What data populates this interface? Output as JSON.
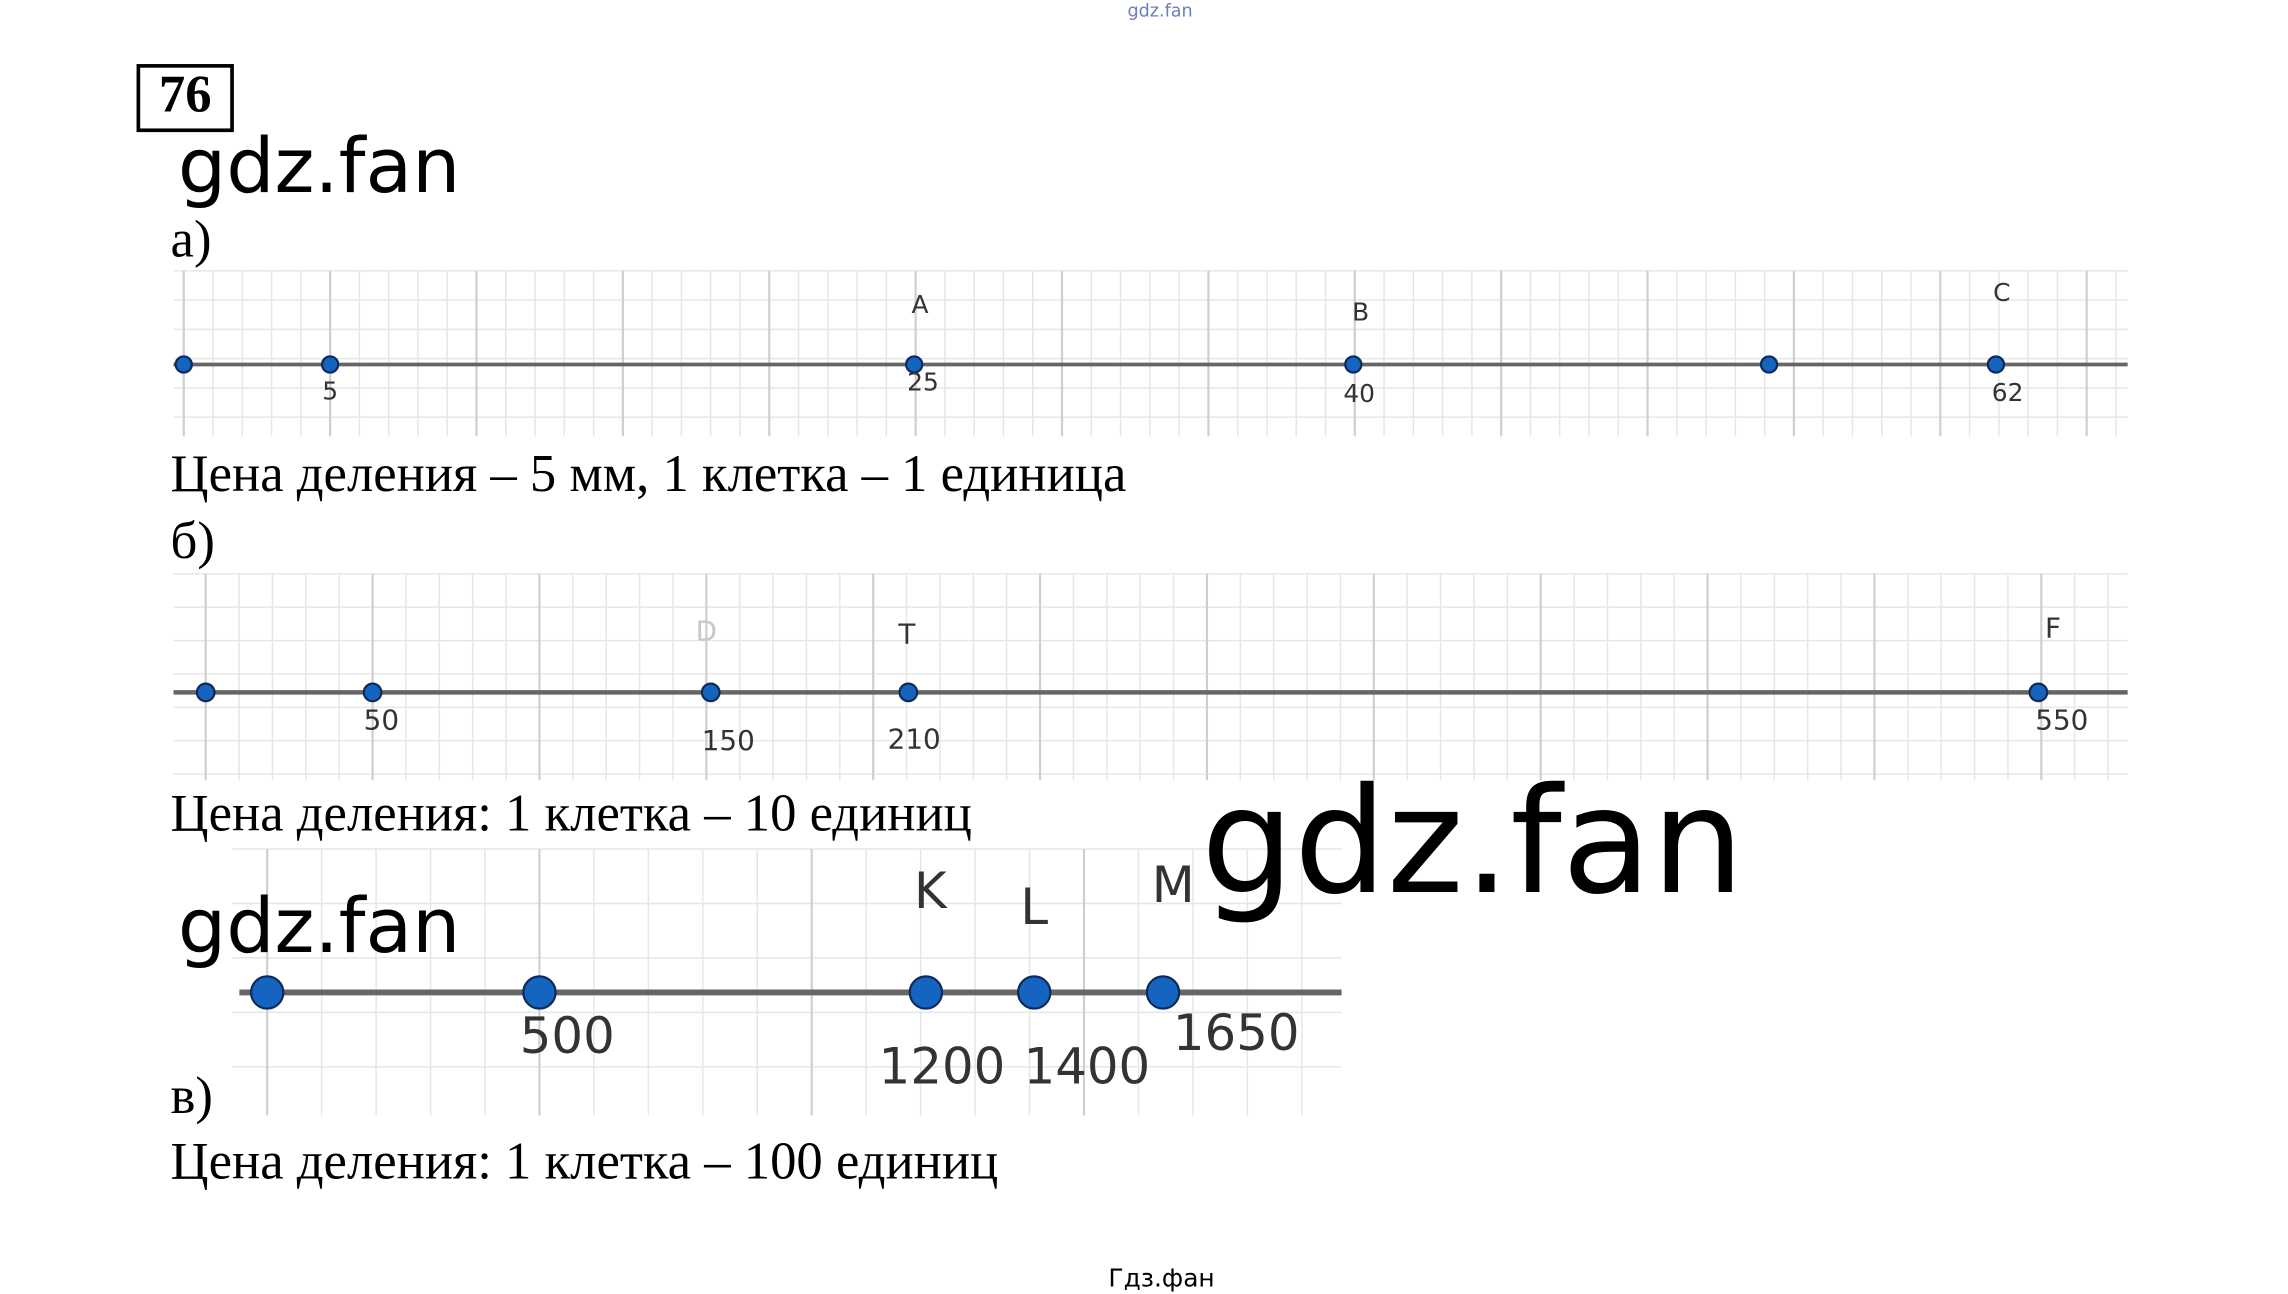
{
  "top_watermark": "gdz.fan",
  "problem_number": "76",
  "watermarks": [
    "gdz.fan",
    "gdz.fan",
    "gdz.fan"
  ],
  "parts": [
    {
      "label": "а)",
      "letters": [
        "A",
        "B",
        "C"
      ],
      "numbers": [
        "5",
        "25",
        "40",
        "62"
      ],
      "caption": "Цена деления – 5 мм, 1 клетка – 1 единица"
    },
    {
      "label": "б)",
      "letters": [
        "D",
        "T",
        "F"
      ],
      "numbers": [
        "50",
        "150",
        "210",
        "550"
      ],
      "caption": "Цена деления: 1 клетка – 10 единиц"
    },
    {
      "label": "в)",
      "letters": [
        "K",
        "L",
        "M"
      ],
      "numbers": [
        "500",
        "1200",
        "1400",
        "1650"
      ],
      "caption": "Цена деления: 1 клетка – 100 единиц"
    }
  ],
  "footer": "Гдз.фан"
}
